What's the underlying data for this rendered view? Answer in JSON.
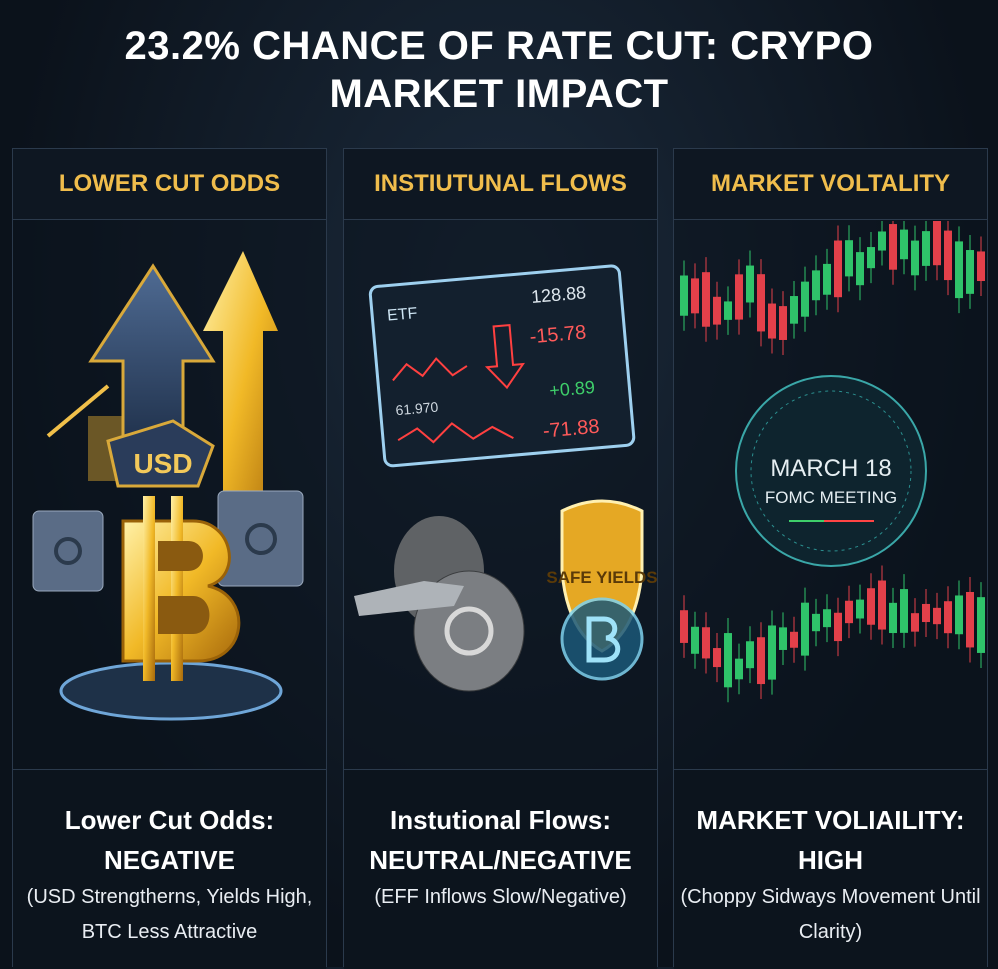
{
  "header": {
    "title": "23.2% CHANCE OF RATE CUT: CRYPO MARKET IMPACT"
  },
  "panels": [
    {
      "heading": "LOWER CUT ODDS",
      "illustration": {
        "badge": "USD"
      },
      "caption": {
        "title": "Lower Cut Odds:",
        "verdict": "NEGATIVE",
        "note": "(USD Strengtherns, Yields High, BTC Less Attractive"
      }
    },
    {
      "heading": "INSTIUTUNAL FLOWS",
      "illustration": {
        "screen_label": "ETF",
        "price": "128.88",
        "change_1": "-15.78",
        "ticker_2": "61.970",
        "change_2": "+0.89",
        "change_3": "-71.88",
        "shield": "SAFE YIELDS"
      },
      "caption": {
        "title": "Instutional Flows:",
        "verdict": "NEUTRAL/NEGATIVE",
        "note": "(EFF Inflows Slow/Negative)"
      }
    },
    {
      "heading": "MARKET VOLTALITY",
      "illustration": {
        "date": "MARCH 18",
        "event": "FOMC MEETING"
      },
      "caption": {
        "title": "MARKET VOLIAILITY:",
        "verdict": "HIGH",
        "note": "(Choppy Sidways Movement Until Clarity)"
      }
    }
  ]
}
